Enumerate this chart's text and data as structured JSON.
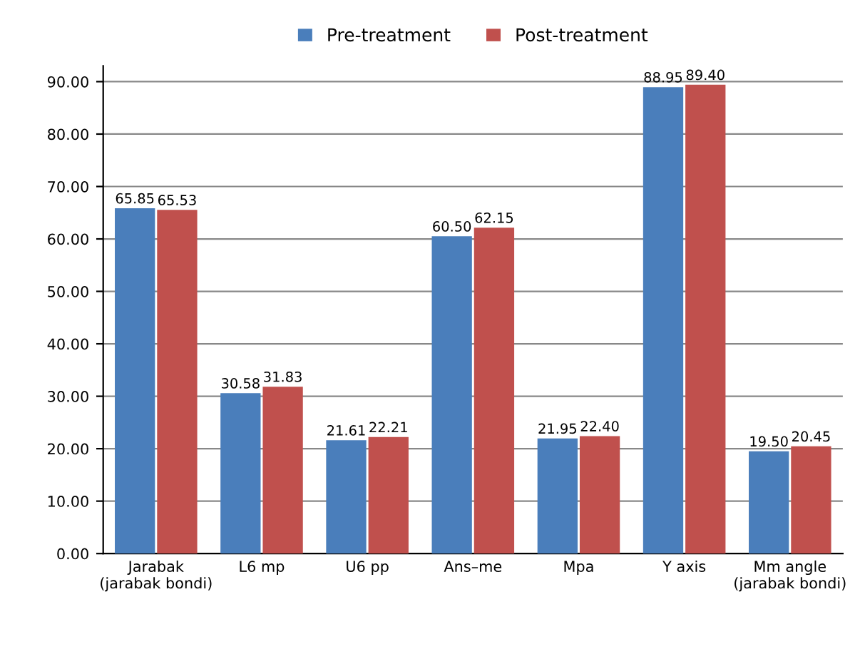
{
  "chart_data": {
    "type": "bar",
    "categories": [
      "Jarabak\n(jarabak bondi)",
      "L6 mp",
      "U6 pp",
      "Ans–me",
      "Mpa",
      "Y axis",
      "Mm angle\n(jarabak bondi)"
    ],
    "series": [
      {
        "name": "Pre-treatment",
        "color": "#4a7ebb",
        "values": [
          65.85,
          30.58,
          21.61,
          60.5,
          21.95,
          88.95,
          19.5
        ],
        "value_labels": [
          "65.85",
          "30.58",
          "21.61",
          "60.50",
          "21.95",
          "88.95",
          "19.50"
        ]
      },
      {
        "name": "Post-treatment",
        "color": "#c0504d",
        "values": [
          65.53,
          31.83,
          22.21,
          62.15,
          22.4,
          89.4,
          20.45
        ],
        "value_labels": [
          "65.53",
          "31.83",
          "22.21",
          "62.15",
          "22.40",
          "89.40",
          "20.45"
        ]
      }
    ],
    "ylim": [
      0,
      93
    ],
    "yticks": [
      {
        "value": 0,
        "label": "0.00"
      },
      {
        "value": 10,
        "label": "10.00"
      },
      {
        "value": 20,
        "label": "20.00"
      },
      {
        "value": 30,
        "label": "30.00"
      },
      {
        "value": 40,
        "label": "40.00"
      },
      {
        "value": 50,
        "label": "50.00"
      },
      {
        "value": 60,
        "label": "60.00"
      },
      {
        "value": 70,
        "label": "70.00"
      },
      {
        "value": 80,
        "label": "80.00"
      },
      {
        "value": 90,
        "label": "90.00"
      }
    ],
    "grid": "y",
    "legend": "top"
  }
}
